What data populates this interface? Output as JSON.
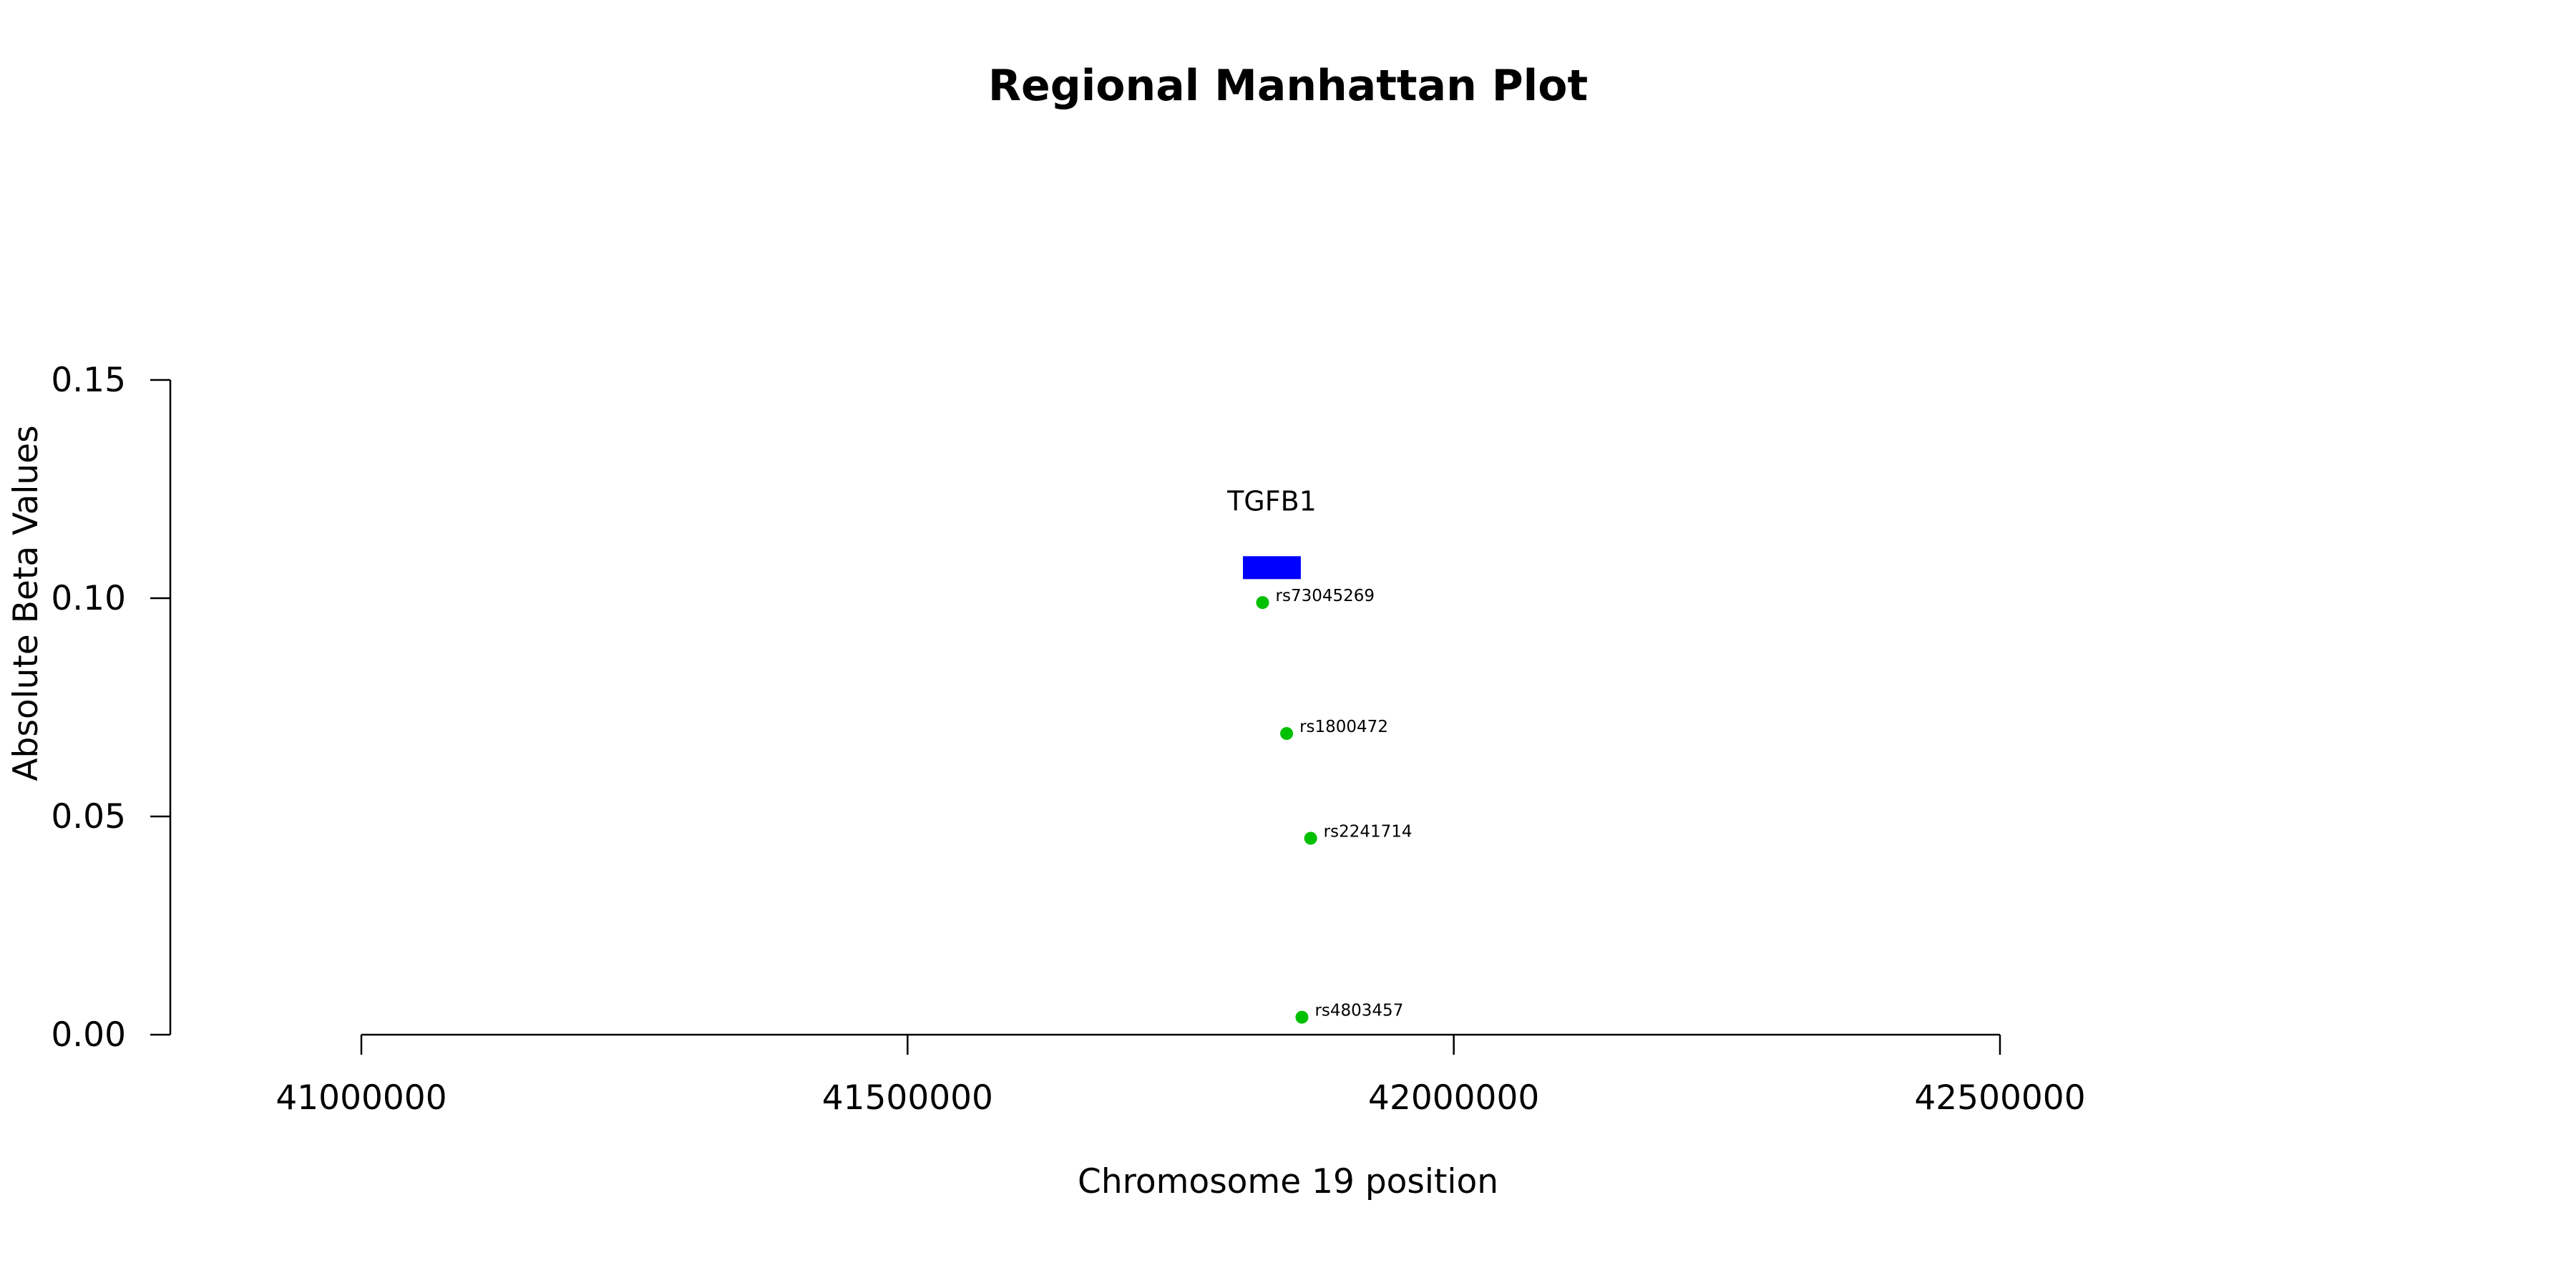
{
  "chart_data": {
    "type": "scatter",
    "title": "Regional Manhattan Plot",
    "xlabel": "Chromosome 19 position",
    "ylabel": "Absolute Beta Values",
    "xlim": [
      41000000,
      42500000
    ],
    "ylim": [
      0,
      0.15
    ],
    "x_ticks": [
      41000000,
      41500000,
      42000000,
      42500000
    ],
    "x_tick_labels": [
      "41000000",
      "41500000",
      "42000000",
      "42500000"
    ],
    "y_ticks": [
      0,
      0.05,
      0.1,
      0.15
    ],
    "y_tick_labels": [
      "0.00",
      "0.05",
      "0.10",
      "0.15"
    ],
    "grid": false,
    "point_color": "#00c000",
    "points": [
      {
        "label": "rs73045269",
        "x": 41825000,
        "y": 0.099
      },
      {
        "label": "rs1800472",
        "x": 41847000,
        "y": 0.069
      },
      {
        "label": "rs2241714",
        "x": 41869000,
        "y": 0.045
      },
      {
        "label": "rs4803457",
        "x": 41861000,
        "y": 0.004
      }
    ],
    "genes": [
      {
        "name": "TGFB1",
        "start": 41807000,
        "end": 41860000,
        "y": 0.107,
        "color": "#0000ff"
      }
    ]
  }
}
